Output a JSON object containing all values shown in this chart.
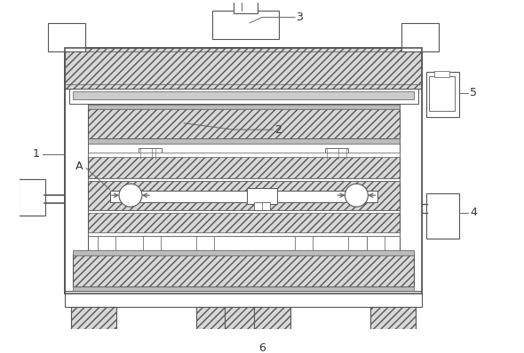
{
  "figsize": [
    5.9,
    3.98
  ],
  "dpi": 100,
  "lc": "#555555",
  "lw": 0.7,
  "hatch_fc": "#e8e8e8",
  "white": "#ffffff"
}
